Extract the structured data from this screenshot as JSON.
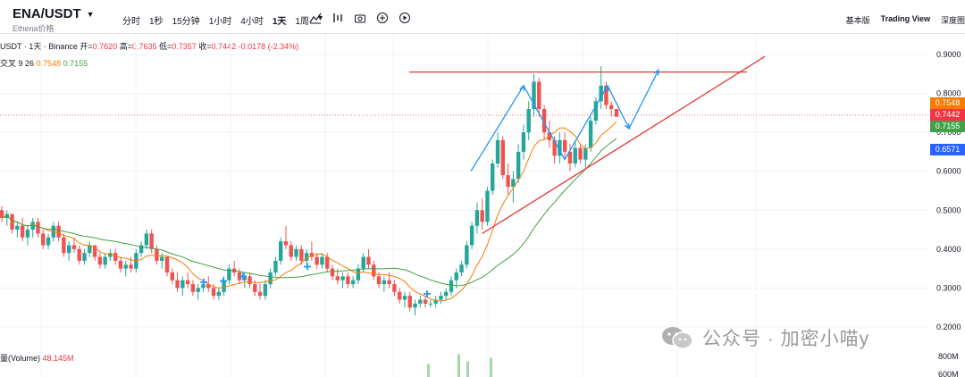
{
  "header": {
    "symbol": "ENA/USDT",
    "symbol_sub": "Ethena价格",
    "intervals": [
      "分时",
      "1秒",
      "15分钟",
      "1小时",
      "4小时",
      "1天",
      "1周"
    ],
    "active_interval": "1天",
    "right_tabs": [
      "基本版",
      "Trading View",
      "深度图"
    ],
    "active_tab": "Trading View"
  },
  "legend": {
    "pair": "USDT · 1天 · Binance",
    "open_label": "开=",
    "open": "0.7620",
    "high_label": "高=",
    "high": "0.7635",
    "low_label": "低=",
    "low": "0.7357",
    "close_label": "收=",
    "close": "0.7442",
    "change": "-0.0178 (-2.34%)"
  },
  "ma_legend": {
    "label": "交叉 9 26",
    "ma_fast": "0.7548",
    "ma_slow": "0.7155"
  },
  "volume_legend": {
    "label": "量(Volume)",
    "value": "48.145M"
  },
  "price_tags": {
    "ma_fast": "0.7548",
    "close": "0.7442",
    "ma_slow": "0.7155",
    "cursor": "0.6571"
  },
  "watermark": "公众号 · 加密小喵y",
  "colors": {
    "up": "#26a69a",
    "down": "#ef5350",
    "ma_fast": "#f57c00",
    "ma_slow": "#43a047",
    "trendline": "#e53935",
    "arrow": "#2196f3",
    "cursor_tag": "#2962ff"
  },
  "chart_data": {
    "type": "candlestick",
    "y_axis_labels": [
      "0.9000",
      "0.8000",
      "0.7000",
      "0.6000",
      "0.5000",
      "0.4000",
      "0.3000",
      "0.2000"
    ],
    "y_axis_secondary": [
      "800M",
      "600M"
    ],
    "ylim": [
      0.18,
      0.92
    ],
    "candles": [
      [
        0.5,
        0.51,
        0.47,
        0.48
      ],
      [
        0.48,
        0.5,
        0.46,
        0.49
      ],
      [
        0.49,
        0.49,
        0.44,
        0.45
      ],
      [
        0.45,
        0.47,
        0.43,
        0.46
      ],
      [
        0.46,
        0.48,
        0.42,
        0.43
      ],
      [
        0.43,
        0.46,
        0.41,
        0.45
      ],
      [
        0.45,
        0.48,
        0.43,
        0.47
      ],
      [
        0.47,
        0.48,
        0.43,
        0.44
      ],
      [
        0.44,
        0.45,
        0.4,
        0.41
      ],
      [
        0.41,
        0.44,
        0.4,
        0.43
      ],
      [
        0.43,
        0.47,
        0.42,
        0.46
      ],
      [
        0.46,
        0.47,
        0.42,
        0.43
      ],
      [
        0.43,
        0.44,
        0.38,
        0.39
      ],
      [
        0.39,
        0.42,
        0.37,
        0.41
      ],
      [
        0.41,
        0.43,
        0.39,
        0.4
      ],
      [
        0.4,
        0.41,
        0.36,
        0.37
      ],
      [
        0.37,
        0.4,
        0.36,
        0.39
      ],
      [
        0.39,
        0.42,
        0.38,
        0.41
      ],
      [
        0.41,
        0.41,
        0.37,
        0.38
      ],
      [
        0.38,
        0.39,
        0.35,
        0.36
      ],
      [
        0.36,
        0.39,
        0.35,
        0.38
      ],
      [
        0.38,
        0.4,
        0.37,
        0.39
      ],
      [
        0.39,
        0.4,
        0.36,
        0.37
      ],
      [
        0.37,
        0.38,
        0.34,
        0.35
      ],
      [
        0.35,
        0.37,
        0.33,
        0.36
      ],
      [
        0.36,
        0.38,
        0.34,
        0.35
      ],
      [
        0.35,
        0.4,
        0.34,
        0.39
      ],
      [
        0.39,
        0.42,
        0.38,
        0.41
      ],
      [
        0.41,
        0.45,
        0.4,
        0.44
      ],
      [
        0.44,
        0.45,
        0.39,
        0.4
      ],
      [
        0.4,
        0.41,
        0.36,
        0.37
      ],
      [
        0.37,
        0.39,
        0.35,
        0.38
      ],
      [
        0.38,
        0.38,
        0.33,
        0.34
      ],
      [
        0.34,
        0.35,
        0.31,
        0.32
      ],
      [
        0.32,
        0.34,
        0.29,
        0.3
      ],
      [
        0.3,
        0.33,
        0.28,
        0.32
      ],
      [
        0.32,
        0.34,
        0.3,
        0.31
      ],
      [
        0.31,
        0.32,
        0.28,
        0.29
      ],
      [
        0.29,
        0.31,
        0.27,
        0.3
      ],
      [
        0.3,
        0.32,
        0.29,
        0.31
      ],
      [
        0.31,
        0.33,
        0.29,
        0.3
      ],
      [
        0.3,
        0.31,
        0.27,
        0.28
      ],
      [
        0.28,
        0.3,
        0.27,
        0.29
      ],
      [
        0.29,
        0.33,
        0.28,
        0.32
      ],
      [
        0.32,
        0.36,
        0.31,
        0.35
      ],
      [
        0.35,
        0.37,
        0.33,
        0.34
      ],
      [
        0.34,
        0.35,
        0.31,
        0.32
      ],
      [
        0.32,
        0.34,
        0.3,
        0.33
      ],
      [
        0.33,
        0.34,
        0.3,
        0.31
      ],
      [
        0.31,
        0.32,
        0.28,
        0.29
      ],
      [
        0.29,
        0.31,
        0.27,
        0.28
      ],
      [
        0.28,
        0.32,
        0.27,
        0.31
      ],
      [
        0.31,
        0.35,
        0.3,
        0.34
      ],
      [
        0.34,
        0.38,
        0.33,
        0.37
      ],
      [
        0.37,
        0.43,
        0.36,
        0.42
      ],
      [
        0.42,
        0.46,
        0.4,
        0.41
      ],
      [
        0.41,
        0.42,
        0.37,
        0.38
      ],
      [
        0.38,
        0.41,
        0.37,
        0.4
      ],
      [
        0.4,
        0.41,
        0.36,
        0.37
      ],
      [
        0.37,
        0.4,
        0.36,
        0.39
      ],
      [
        0.39,
        0.42,
        0.37,
        0.38
      ],
      [
        0.38,
        0.39,
        0.35,
        0.36
      ],
      [
        0.36,
        0.39,
        0.35,
        0.38
      ],
      [
        0.38,
        0.39,
        0.34,
        0.35
      ],
      [
        0.35,
        0.36,
        0.32,
        0.33
      ],
      [
        0.33,
        0.35,
        0.31,
        0.32
      ],
      [
        0.32,
        0.34,
        0.3,
        0.33
      ],
      [
        0.33,
        0.34,
        0.3,
        0.31
      ],
      [
        0.31,
        0.33,
        0.3,
        0.32
      ],
      [
        0.32,
        0.36,
        0.31,
        0.35
      ],
      [
        0.35,
        0.39,
        0.34,
        0.38
      ],
      [
        0.38,
        0.4,
        0.35,
        0.36
      ],
      [
        0.36,
        0.37,
        0.32,
        0.33
      ],
      [
        0.33,
        0.34,
        0.3,
        0.31
      ],
      [
        0.31,
        0.33,
        0.29,
        0.32
      ],
      [
        0.32,
        0.34,
        0.3,
        0.31
      ],
      [
        0.31,
        0.32,
        0.28,
        0.29
      ],
      [
        0.29,
        0.3,
        0.26,
        0.27
      ],
      [
        0.27,
        0.29,
        0.25,
        0.28
      ],
      [
        0.28,
        0.29,
        0.24,
        0.25
      ],
      [
        0.25,
        0.27,
        0.23,
        0.26
      ],
      [
        0.26,
        0.28,
        0.25,
        0.27
      ],
      [
        0.27,
        0.28,
        0.25,
        0.26
      ],
      [
        0.26,
        0.27,
        0.25,
        0.26
      ],
      [
        0.26,
        0.28,
        0.25,
        0.27
      ],
      [
        0.27,
        0.29,
        0.26,
        0.28
      ],
      [
        0.28,
        0.3,
        0.27,
        0.29
      ],
      [
        0.29,
        0.33,
        0.28,
        0.32
      ],
      [
        0.32,
        0.35,
        0.3,
        0.34
      ],
      [
        0.34,
        0.37,
        0.33,
        0.36
      ],
      [
        0.36,
        0.42,
        0.35,
        0.41
      ],
      [
        0.41,
        0.47,
        0.4,
        0.46
      ],
      [
        0.46,
        0.52,
        0.44,
        0.5
      ],
      [
        0.5,
        0.53,
        0.45,
        0.47
      ],
      [
        0.47,
        0.56,
        0.46,
        0.55
      ],
      [
        0.55,
        0.63,
        0.54,
        0.62
      ],
      [
        0.62,
        0.7,
        0.61,
        0.68
      ],
      [
        0.68,
        0.69,
        0.58,
        0.59
      ],
      [
        0.59,
        0.62,
        0.54,
        0.56
      ],
      [
        0.56,
        0.6,
        0.52,
        0.58
      ],
      [
        0.58,
        0.67,
        0.57,
        0.65
      ],
      [
        0.65,
        0.72,
        0.63,
        0.7
      ],
      [
        0.7,
        0.78,
        0.68,
        0.76
      ],
      [
        0.76,
        0.85,
        0.74,
        0.83
      ],
      [
        0.83,
        0.84,
        0.74,
        0.76
      ],
      [
        0.76,
        0.77,
        0.68,
        0.7
      ],
      [
        0.7,
        0.73,
        0.66,
        0.68
      ],
      [
        0.68,
        0.69,
        0.62,
        0.64
      ],
      [
        0.64,
        0.7,
        0.62,
        0.68
      ],
      [
        0.68,
        0.7,
        0.63,
        0.65
      ],
      [
        0.65,
        0.67,
        0.6,
        0.62
      ],
      [
        0.62,
        0.68,
        0.61,
        0.66
      ],
      [
        0.66,
        0.67,
        0.62,
        0.63
      ],
      [
        0.63,
        0.67,
        0.61,
        0.66
      ],
      [
        0.66,
        0.74,
        0.65,
        0.73
      ],
      [
        0.73,
        0.79,
        0.72,
        0.78
      ],
      [
        0.78,
        0.87,
        0.76,
        0.82
      ],
      [
        0.82,
        0.83,
        0.76,
        0.77
      ],
      [
        0.77,
        0.78,
        0.74,
        0.76
      ],
      [
        0.76,
        0.76,
        0.74,
        0.74
      ]
    ],
    "ma_fast_label": "0.7548",
    "ma_slow_label": "0.7155",
    "volume_bars": [
      0.18,
      0.32,
      0.22,
      0.27
    ],
    "annotations": {
      "resistance": 0.855,
      "support_start": [
        93,
        0.44
      ],
      "support_end_price": 0.895
    }
  }
}
